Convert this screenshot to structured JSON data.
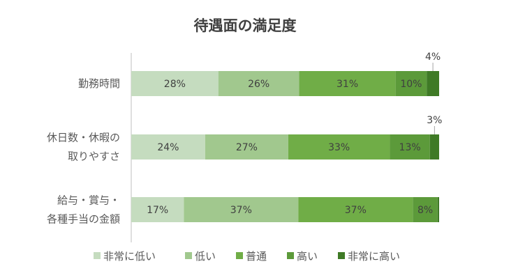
{
  "chart_data": {
    "type": "bar",
    "orientation": "horizontal",
    "stacked": true,
    "percent": true,
    "title": "待遇面の満足度",
    "xlabel": "",
    "ylabel": "",
    "xlim": [
      0,
      100
    ],
    "grid": false,
    "legend_position": "bottom",
    "categories": [
      [
        "勤務時間"
      ],
      [
        "休日数・休暇の",
        "取りやすさ"
      ],
      [
        "給与・賞与・",
        "各種手当の金額"
      ]
    ],
    "series": [
      {
        "name": "非常に低い",
        "color": "#c5dcbf",
        "values": [
          28,
          24,
          17
        ],
        "labels": [
          "28%",
          "24%",
          "17%"
        ]
      },
      {
        "name": "低い",
        "color": "#a1c88e",
        "values": [
          26,
          27,
          37
        ],
        "labels": [
          "26%",
          "27%",
          "37%"
        ]
      },
      {
        "name": "普通",
        "color": "#70ad47",
        "values": [
          31,
          33,
          37
        ],
        "labels": [
          "31%",
          "33%",
          "37%"
        ]
      },
      {
        "name": "高い",
        "color": "#5c9a3a",
        "values": [
          10,
          13,
          8
        ],
        "labels": [
          "10%",
          "13%",
          "8%"
        ]
      },
      {
        "name": "非常に高い",
        "color": "#3f7a26",
        "values": [
          4,
          3,
          0.5
        ],
        "labels": [
          "4%",
          "3%",
          ""
        ]
      }
    ]
  }
}
